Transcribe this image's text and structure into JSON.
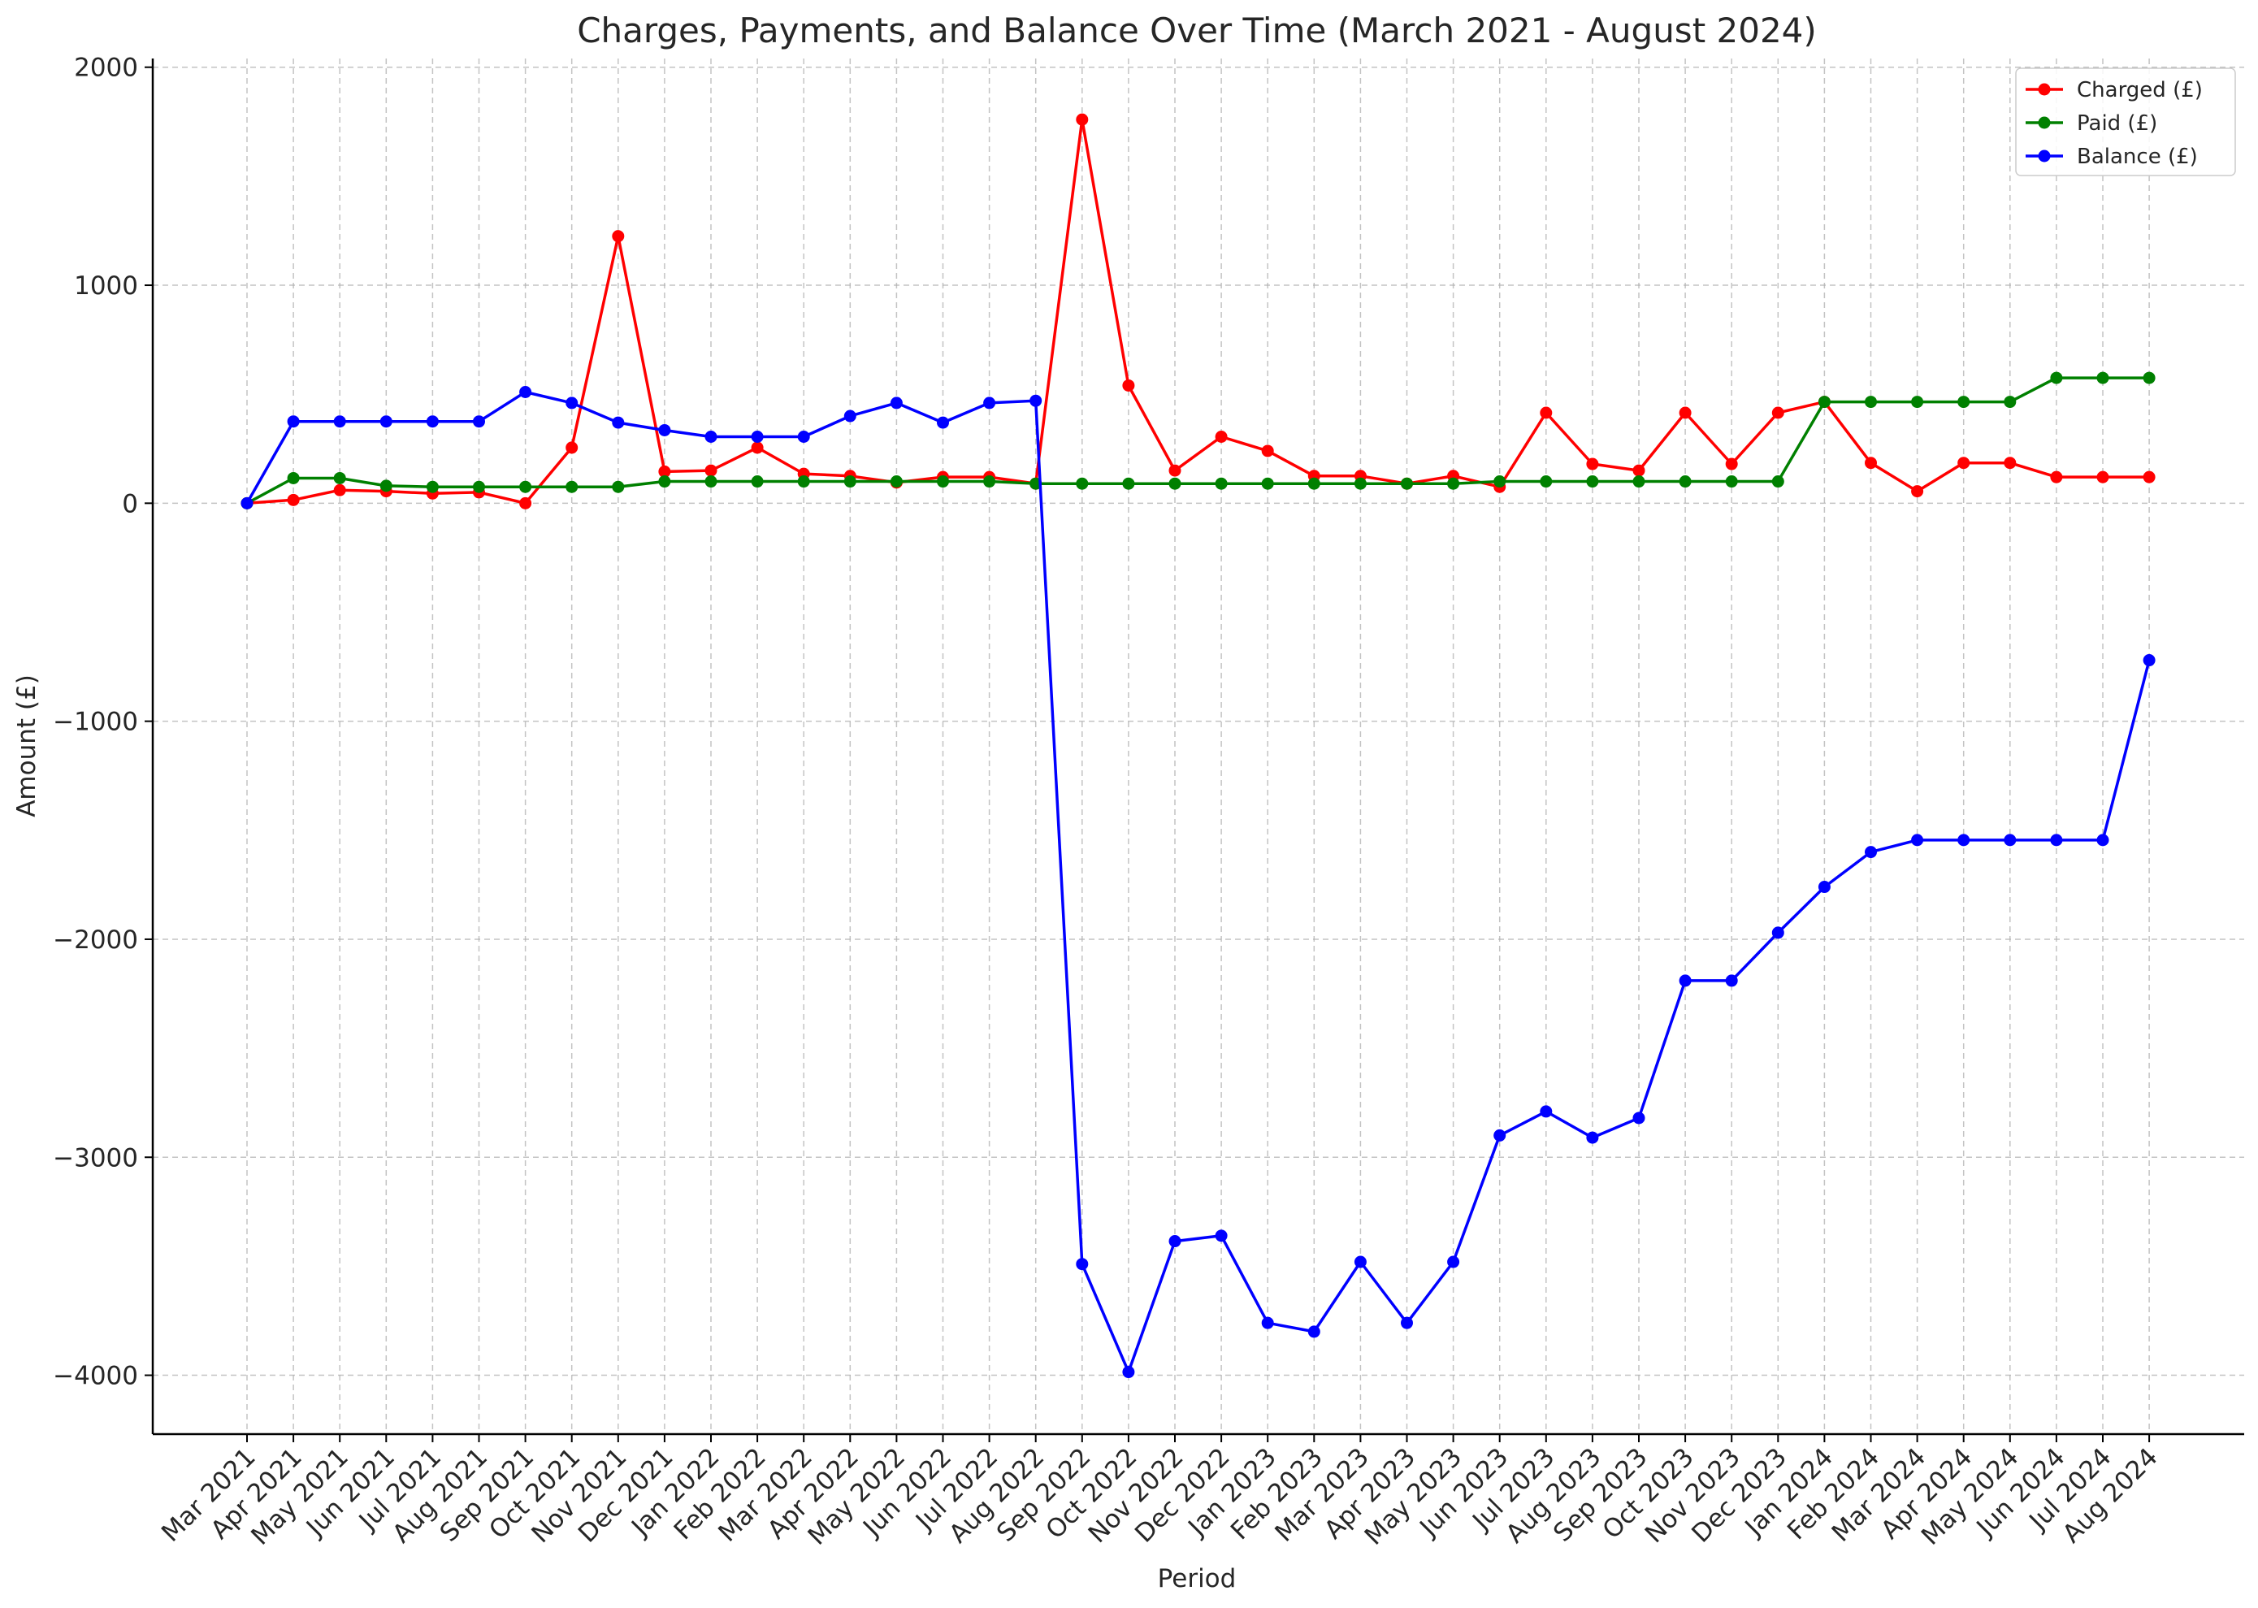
{
  "chart_data": {
    "type": "line",
    "title": "Charges, Payments, and Balance Over Time (March 2021 - August 2024)",
    "xlabel": "Period",
    "ylabel": "Amount (£)",
    "ylim": [
      -4270,
      2040
    ],
    "yticks": [
      2000,
      1000,
      0,
      -1000,
      -2000,
      -3000,
      -4000
    ],
    "ytick_labels": [
      "2000",
      "1000",
      "0",
      "−1000",
      "−2000",
      "−3000",
      "−4000"
    ],
    "grid": true,
    "legend_position": "top-right",
    "categories": [
      "Mar 2021",
      "Apr 2021",
      "May 2021",
      "Jun 2021",
      "Jul 2021",
      "Aug 2021",
      "Sep 2021",
      "Oct 2021",
      "Nov 2021",
      "Dec 2021",
      "Jan 2022",
      "Feb 2022",
      "Mar 2022",
      "Apr 2022",
      "May 2022",
      "Jun 2022",
      "Jul 2022",
      "Aug 2022",
      "Sep 2022",
      "Oct 2022",
      "Nov 2022",
      "Dec 2022",
      "Jan 2023",
      "Feb 2023",
      "Mar 2023",
      "Apr 2023",
      "May 2023",
      "Jun 2023",
      "Jul 2023",
      "Aug 2023",
      "Sep 2023",
      "Oct 2023",
      "Nov 2023",
      "Dec 2023",
      "Jan 2024",
      "Feb 2024",
      "Mar 2024",
      "Apr 2024",
      "May 2024",
      "Jun 2024",
      "Jul 2024",
      "Aug 2024"
    ],
    "series": [
      {
        "name": "Charged (£)",
        "color": "#ff0000",
        "values": [
          0,
          15,
          60,
          55,
          45,
          50,
          0,
          255,
          1225,
          145,
          150,
          255,
          135,
          125,
          95,
          120,
          120,
          90,
          1760,
          540,
          150,
          305,
          240,
          125,
          125,
          90,
          125,
          75,
          415,
          180,
          150,
          415,
          180,
          415,
          465,
          185,
          55,
          185,
          185,
          120,
          120,
          120
        ]
      },
      {
        "name": "Paid (£)",
        "color": "#008000",
        "values": [
          0,
          115,
          115,
          80,
          75,
          75,
          75,
          75,
          75,
          100,
          100,
          100,
          100,
          100,
          100,
          100,
          100,
          90,
          90,
          90,
          90,
          90,
          90,
          90,
          90,
          90,
          90,
          100,
          100,
          100,
          100,
          100,
          100,
          100,
          465,
          465,
          465,
          465,
          465,
          575,
          575,
          575
        ]
      },
      {
        "name": "Balance (£)",
        "color": "#0000ff",
        "values": [
          0,
          375,
          375,
          375,
          375,
          375,
          510,
          460,
          370,
          335,
          305,
          305,
          305,
          400,
          460,
          370,
          460,
          470,
          -3490,
          -3985,
          -3385,
          -3360,
          -3760,
          -3800,
          -3480,
          -3760,
          -3480,
          -2900,
          -2790,
          -2910,
          -2820,
          -2190,
          -2190,
          -1970,
          -1760,
          -1600,
          -1545,
          -1545,
          -1545,
          -1545,
          -1545,
          -720
        ]
      }
    ]
  }
}
